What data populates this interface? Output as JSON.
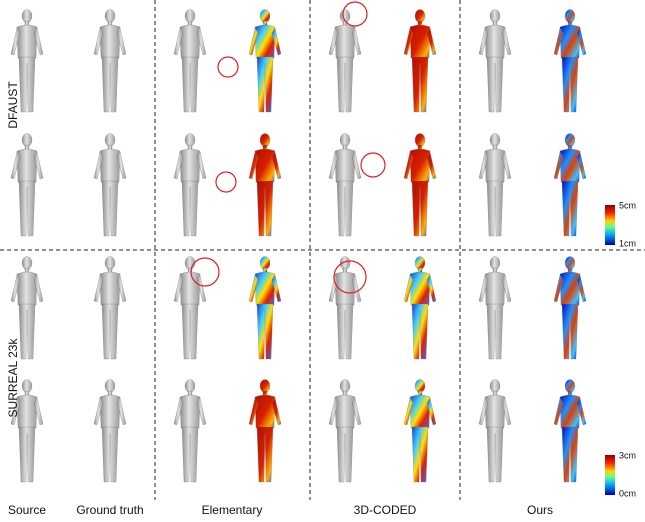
{
  "row_labels": [
    "DFAUST",
    "SURREAL 23k"
  ],
  "column_labels": [
    "Source",
    "Ground truth",
    "Elementary",
    "3D-CODED",
    "Ours"
  ],
  "colorbars": [
    {
      "top": "5cm",
      "bottom": "1cm"
    },
    {
      "top": "3cm",
      "bottom": "0cm"
    }
  ]
}
